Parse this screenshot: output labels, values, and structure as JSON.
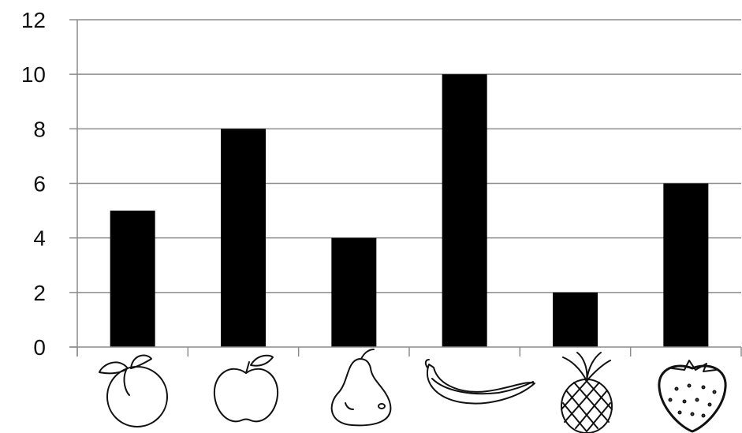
{
  "chart_data": {
    "type": "bar",
    "categories": [
      "orange-icon",
      "apple-icon",
      "pear-icon",
      "banana-icon",
      "pineapple-icon",
      "strawberry-icon"
    ],
    "values": [
      5,
      8,
      4,
      10,
      2,
      6
    ],
    "yticks": [
      "0",
      "2",
      "4",
      "6",
      "8",
      "10",
      "12"
    ],
    "ylim": [
      0,
      12
    ],
    "grid": true,
    "bar_color": "#000000",
    "grid_color": "#8c8c8c"
  }
}
